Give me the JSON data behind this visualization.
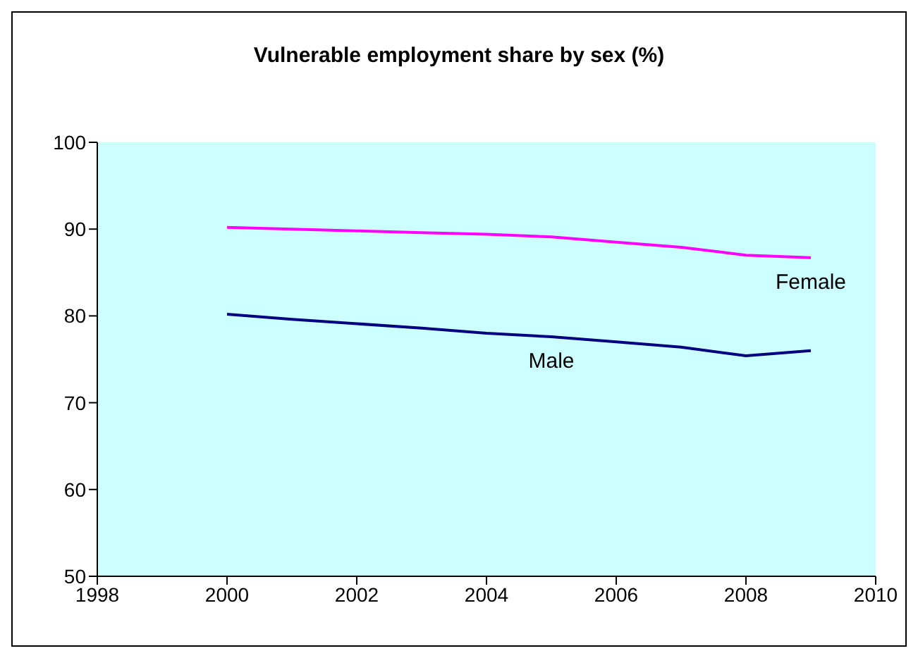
{
  "chart_data": {
    "type": "line",
    "title": "Vulnerable employment share by sex (%)",
    "x": [
      2000,
      2001,
      2002,
      2003,
      2004,
      2005,
      2006,
      2007,
      2008,
      2009
    ],
    "xlim": [
      1998,
      2010
    ],
    "xticks": [
      1998,
      2000,
      2002,
      2004,
      2006,
      2008,
      2010
    ],
    "ylim": [
      50,
      100
    ],
    "yticks": [
      50,
      60,
      70,
      80,
      90,
      100
    ],
    "grid": false,
    "legend": false,
    "marker": "none",
    "line_style": "solid",
    "series": [
      {
        "name": "Female",
        "color": "#ff00ff",
        "values": [
          90.2,
          90.0,
          89.8,
          89.6,
          89.4,
          89.1,
          88.5,
          87.9,
          87.0,
          86.7
        ]
      },
      {
        "name": "Male",
        "color": "#000080",
        "values": [
          80.2,
          79.6,
          79.1,
          78.6,
          78.0,
          77.6,
          77.0,
          76.4,
          75.4,
          76.0
        ]
      }
    ]
  }
}
